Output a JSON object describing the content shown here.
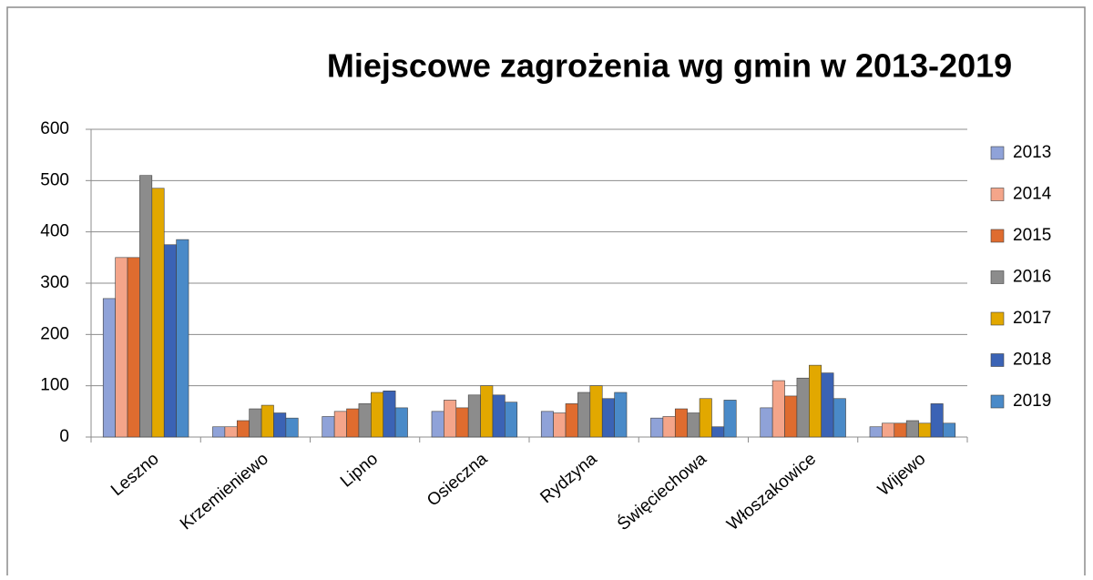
{
  "chart_data": {
    "type": "bar",
    "title": "Miejscowe zagrożenia wg gmin w 2013-2019",
    "categories": [
      "Leszno",
      "Krzemieniewo",
      "Lipno",
      "Osieczna",
      "Rydzyna",
      "Święciechowa",
      "Włoszakowice",
      "Wijewo"
    ],
    "series": [
      {
        "name": "2013",
        "color": "#8fa2d8",
        "values": [
          270,
          20,
          40,
          50,
          50,
          37,
          57,
          20
        ]
      },
      {
        "name": "2014",
        "color": "#f4a58a",
        "values": [
          350,
          20,
          50,
          72,
          47,
          40,
          110,
          27
        ]
      },
      {
        "name": "2015",
        "color": "#df6c2f",
        "values": [
          350,
          32,
          55,
          57,
          65,
          55,
          80,
          27
        ]
      },
      {
        "name": "2016",
        "color": "#8c8c8c",
        "values": [
          510,
          55,
          65,
          82,
          87,
          47,
          115,
          32
        ]
      },
      {
        "name": "2017",
        "color": "#e2a800",
        "values": [
          485,
          62,
          87,
          100,
          100,
          75,
          140,
          27
        ]
      },
      {
        "name": "2018",
        "color": "#3b63b5",
        "values": [
          375,
          47,
          90,
          82,
          75,
          20,
          125,
          65
        ]
      },
      {
        "name": "2019",
        "color": "#4a8ac8",
        "values": [
          385,
          37,
          57,
          68,
          87,
          72,
          75,
          27
        ]
      }
    ],
    "ylim": [
      0,
      600
    ],
    "yticks": [
      0,
      100,
      200,
      300,
      400,
      500,
      600
    ],
    "grid": true,
    "legend": "right"
  }
}
